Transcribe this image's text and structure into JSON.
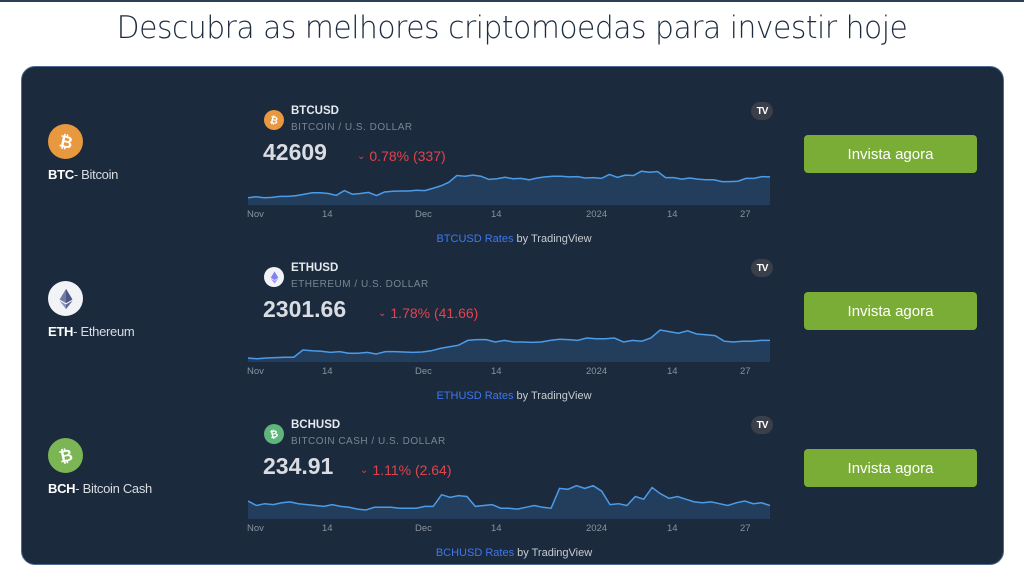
{
  "page": {
    "title": "Descubra as melhores criptomoedas para investir hoje"
  },
  "colors": {
    "panel_bg": "#1b2a3d",
    "button_green": "#79ad36",
    "negative_red": "#e0444d",
    "line_blue": "#4c9be8",
    "link_blue": "#3d78f0",
    "btc_orange": "#e8983f",
    "bch_green": "#7bb554",
    "eth_white": "#f2f3f6"
  },
  "coins": [
    {
      "ticker": "BTC",
      "name": "- Bitcoin",
      "icon": "bitcoin-icon",
      "widget": {
        "symbol": "BTCUSD",
        "description": "BITCOIN / U.S. DOLLAR",
        "price": "42609",
        "change": "0.78% (337)",
        "change_direction": "down",
        "attribution_link": "BTCUSD Rates",
        "attribution_suffix": " by TradingView",
        "tv_badge": "TV"
      },
      "button_label": "Invista agora"
    },
    {
      "ticker": "ETH",
      "name": "- Ethereum",
      "icon": "ethereum-icon",
      "widget": {
        "symbol": "ETHUSD",
        "description": "ETHEREUM / U.S. DOLLAR",
        "price": "2301.66",
        "change": "1.78% (41.66)",
        "change_direction": "down",
        "attribution_link": "ETHUSD Rates",
        "attribution_suffix": " by TradingView",
        "tv_badge": "TV"
      },
      "button_label": "Invista agora"
    },
    {
      "ticker": "BCH",
      "name": "- Bitcoin Cash",
      "icon": "bitcoin-cash-icon",
      "widget": {
        "symbol": "BCHUSD",
        "description": "BITCOIN CASH / U.S. DOLLAR",
        "price": "234.91",
        "change": "1.11% (2.64)",
        "change_direction": "down",
        "attribution_link": "BCHUSD Rates",
        "attribution_suffix": " by TradingView",
        "tv_badge": "TV"
      },
      "button_label": "Invista agora"
    }
  ],
  "axis_labels": [
    "Nov",
    "14",
    "Dec",
    "14",
    "2024",
    "14",
    "27"
  ],
  "chart_data": [
    {
      "type": "area",
      "title": "BTCUSD",
      "x_ticks": [
        "Nov",
        "14",
        "Dec",
        "14",
        "2024",
        "14",
        "27"
      ],
      "values": [
        35.0,
        35.3,
        35.0,
        35.1,
        35.4,
        35.4,
        35.6,
        36.0,
        36.4,
        36.4,
        36.2,
        35.7,
        37.0,
        36.0,
        36.2,
        36.5,
        35.6,
        36.6,
        36.8,
        36.9,
        36.9,
        37.1,
        37.0,
        37.6,
        38.3,
        39.3,
        41.2,
        41.0,
        41.3,
        41.0,
        40.1,
        40.3,
        40.7,
        40.3,
        40.4,
        40.0,
        40.5,
        40.8,
        41.0,
        41.0,
        40.8,
        40.9,
        40.5,
        40.6,
        40.4,
        41.5,
        40.7,
        41.3,
        41.2,
        42.4,
        42.1,
        42.3,
        40.6,
        40.6,
        40.2,
        40.5,
        40.2,
        40.0,
        40.0,
        39.5,
        39.5,
        39.6,
        40.4,
        40.4,
        40.9,
        40.8
      ],
      "ylim": [
        33,
        43
      ]
    },
    {
      "type": "area",
      "title": "ETHUSD",
      "x_ticks": [
        "Nov",
        "14",
        "Dec",
        "14",
        "2024",
        "14",
        "27"
      ],
      "values": [
        1800,
        1790,
        1800,
        1805,
        1810,
        1810,
        1900,
        1890,
        1885,
        1870,
        1880,
        1860,
        1860,
        1870,
        1850,
        1880,
        1880,
        1875,
        1870,
        1875,
        1890,
        1920,
        1940,
        1960,
        2020,
        2030,
        2030,
        2000,
        2020,
        2000,
        2000,
        1995,
        2000,
        2020,
        2035,
        2030,
        2020,
        2050,
        2040,
        2040,
        2050,
        2000,
        2020,
        2010,
        2050,
        2150,
        2130,
        2110,
        2140,
        2100,
        2090,
        2080,
        2010,
        2000,
        2010,
        2010,
        2020,
        2020
      ],
      "ylim": [
        1750,
        2200
      ]
    },
    {
      "type": "area",
      "title": "BCHUSD",
      "x_ticks": [
        "Nov",
        "14",
        "Dec",
        "14",
        "2024",
        "14",
        "27"
      ],
      "values": [
        245,
        240,
        242,
        241,
        243,
        244,
        242,
        241,
        240,
        239,
        241,
        239,
        238,
        236,
        235,
        238,
        238,
        238,
        237,
        237,
        237,
        239,
        239,
        252,
        249,
        251,
        250,
        239,
        240,
        241,
        237,
        237,
        236,
        238,
        240,
        238,
        237,
        259,
        258,
        262,
        259,
        262,
        256,
        241,
        242,
        240,
        250,
        247,
        260,
        253,
        248,
        250,
        247,
        244,
        243,
        244,
        242,
        240,
        243,
        245,
        242,
        243,
        240
      ],
      "ylim": [
        225,
        265
      ]
    }
  ]
}
